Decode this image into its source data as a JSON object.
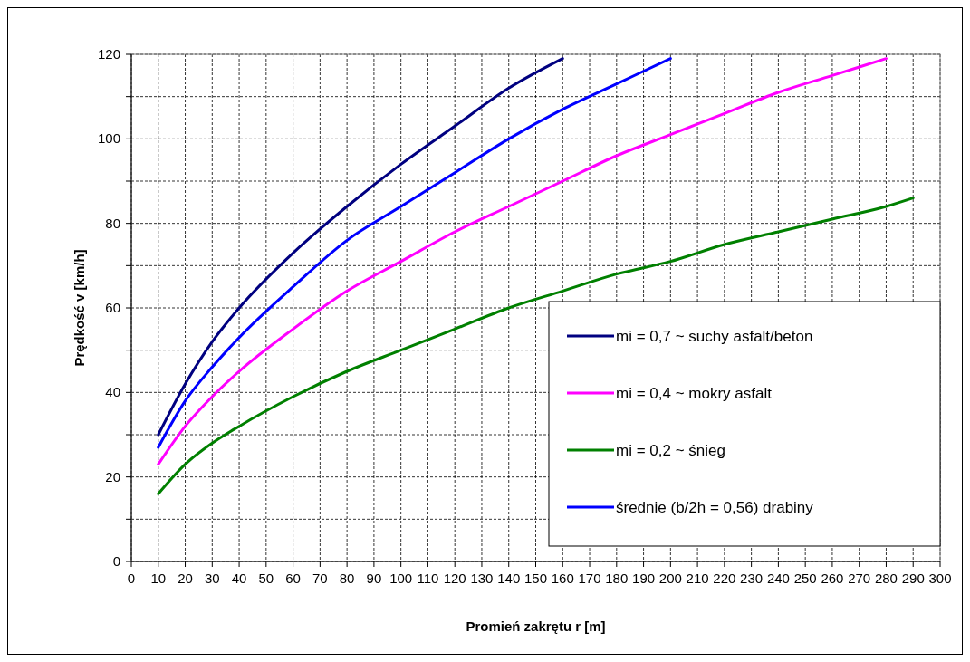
{
  "chart_data": {
    "type": "line",
    "xlabel": "Promień zakrętu r [m]",
    "ylabel": "Prędkość v [km/h]",
    "xlim": [
      0,
      300
    ],
    "xticks": [
      0,
      10,
      20,
      30,
      40,
      50,
      60,
      70,
      80,
      90,
      100,
      110,
      120,
      130,
      140,
      150,
      160,
      170,
      180,
      190,
      200,
      210,
      220,
      230,
      240,
      250,
      260,
      270,
      280,
      290,
      300
    ],
    "ylim": [
      0,
      120
    ],
    "yticks": [
      0,
      {
        "value": 10,
        "label": null
      },
      20,
      {
        "value": 30,
        "label": null
      },
      40,
      {
        "value": 50,
        "label": null
      },
      60,
      {
        "value": 70,
        "label": null
      },
      80,
      {
        "value": 90,
        "label": null
      },
      100,
      {
        "value": 110,
        "label": null
      },
      120
    ],
    "grid": true,
    "legend": "bottom right",
    "line_style": "solid",
    "marker": "none",
    "series": [
      {
        "name": "mi = 0,7 ~ suchy asfalt/beton",
        "color": "#000080",
        "x": [
          10,
          20,
          30,
          40,
          60,
          80,
          100,
          120,
          140,
          160
        ],
        "values": [
          30,
          42,
          52,
          60,
          73,
          84,
          94,
          103,
          112,
          119
        ]
      },
      {
        "name": "mi = 0,4 ~ mokry asfalt",
        "color": "#ff00ff",
        "x": [
          10,
          20,
          30,
          40,
          60,
          80,
          100,
          120,
          140,
          160,
          180,
          200,
          220,
          240,
          260,
          280
        ],
        "values": [
          23,
          32,
          39,
          45,
          55,
          64,
          71,
          78,
          84,
          90,
          96,
          101,
          106,
          111,
          115,
          119
        ]
      },
      {
        "name": "mi = 0,2 ~ śnieg",
        "color": "#008000",
        "x": [
          10,
          20,
          30,
          40,
          60,
          80,
          100,
          120,
          140,
          160,
          180,
          200,
          220,
          240,
          260,
          280,
          290
        ],
        "values": [
          16,
          23,
          28,
          32,
          39,
          45,
          50,
          55,
          60,
          64,
          68,
          71,
          75,
          78,
          81,
          84,
          86
        ]
      },
      {
        "name": "średnie (b/2h = 0,56) drabiny",
        "color": "#0000ff",
        "x": [
          10,
          20,
          30,
          40,
          60,
          80,
          100,
          120,
          140,
          160,
          180,
          200
        ],
        "values": [
          27,
          38,
          46,
          53,
          65,
          76,
          84,
          92,
          100,
          107,
          113,
          119
        ]
      }
    ]
  }
}
